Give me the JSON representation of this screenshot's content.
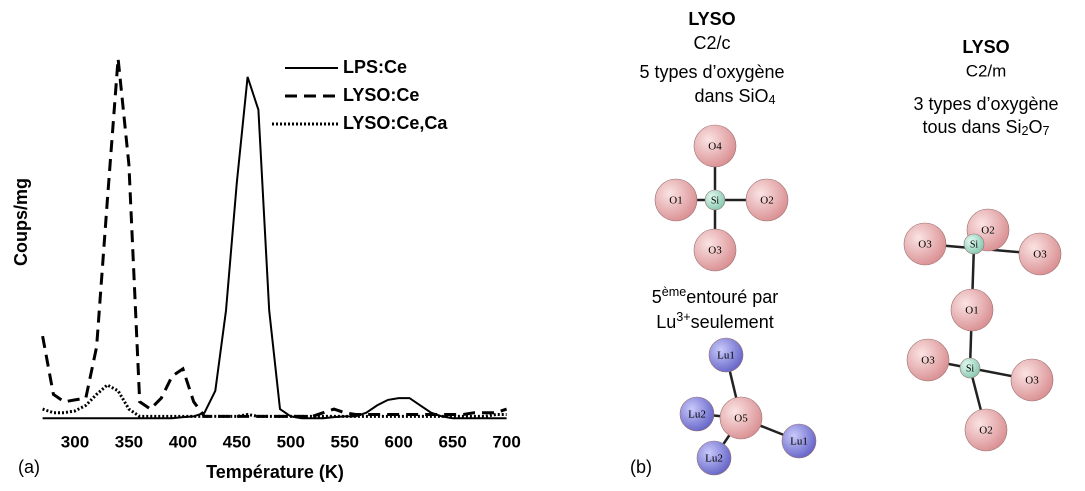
{
  "chart_data": {
    "type": "line",
    "xlabel": "Température (K)",
    "ylabel": "Coups/mg",
    "x": [
      270,
      280,
      290,
      300,
      310,
      320,
      330,
      340,
      350,
      360,
      370,
      380,
      390,
      400,
      410,
      420,
      430,
      440,
      450,
      460,
      470,
      480,
      490,
      500,
      510,
      520,
      530,
      540,
      550,
      560,
      570,
      580,
      590,
      600,
      610,
      620,
      630,
      640,
      650,
      660,
      670,
      680,
      690,
      700
    ],
    "series": [
      {
        "name": "LPS:Ce",
        "color": "#000000",
        "linestyle": "solid",
        "values": [
          0.5,
          0.5,
          0.5,
          0.5,
          0.5,
          0.5,
          0.5,
          0.5,
          0.5,
          0.5,
          0.5,
          0.5,
          0.5,
          0.8,
          1,
          2,
          8,
          30,
          65,
          94,
          85,
          30,
          3,
          1,
          0.5,
          0.5,
          0.5,
          0.8,
          1,
          1,
          2,
          4,
          5.5,
          6,
          6,
          4,
          2,
          1,
          0.5,
          0.5,
          0.5,
          0.5,
          0.5,
          0.5
        ]
      },
      {
        "name": "LYSO:Ce",
        "color": "#000000",
        "linestyle": "dashed",
        "values": [
          23,
          7,
          5,
          5.5,
          6,
          20,
          60,
          99,
          70,
          5,
          3,
          6,
          12,
          14,
          5,
          1,
          1,
          1,
          1,
          1,
          1,
          1,
          1,
          1,
          1,
          1,
          2,
          3,
          2,
          1.5,
          1.5,
          1.5,
          1.5,
          1.5,
          1.5,
          1.5,
          1.5,
          1.5,
          1.5,
          1.5,
          2,
          2,
          2,
          3
        ]
      },
      {
        "name": "LYSO:Ce,Ca",
        "color": "#000000",
        "linestyle": "dotted",
        "values": [
          3,
          2,
          2,
          2.5,
          4,
          7,
          9.6,
          8,
          3,
          1,
          1,
          1,
          1,
          1,
          1,
          1,
          1,
          1,
          1,
          1.5,
          1,
          1,
          1,
          1,
          1,
          1,
          1,
          1,
          1,
          1,
          1,
          1,
          1,
          1,
          1,
          1,
          1,
          1,
          1,
          1,
          1,
          1,
          1.5,
          1.5
        ]
      }
    ],
    "xlim": [
      270,
      705
    ],
    "ylim": [
      0,
      100
    ],
    "xticks": [
      300,
      350,
      400,
      450,
      500,
      550,
      600,
      650,
      700
    ],
    "legend": "upper right",
    "grid": false
  },
  "panel_a_label": "(a)",
  "panel_b": {
    "label": "(b)",
    "left": {
      "title": "LYSO",
      "space_group": "C2/c",
      "caption": [
        [
          {
            "text": "5 types d’oxygène"
          }
        ],
        [
          {
            "text": "dans SiO"
          },
          {
            "sub": "4"
          }
        ]
      ],
      "atoms": [
        "O4",
        "O1",
        "Si",
        "O2",
        "O3"
      ],
      "note": [
        [
          {
            "text": "5"
          },
          {
            "sup": "ème"
          },
          {
            "text": "entouré par"
          }
        ],
        [
          {
            "text": "Lu"
          },
          {
            "sup": "3+"
          },
          {
            "text": "seulement"
          }
        ]
      ],
      "atoms2": [
        "Lu1",
        "Lu2",
        "O5",
        "Lu2",
        "Lu1"
      ]
    },
    "right": {
      "title": "LYSO",
      "space_group": "C2/m",
      "caption": [
        [
          {
            "text": "3 types d’oxygène"
          }
        ],
        [
          {
            "text": "tous dans Si"
          },
          {
            "sub": "2"
          },
          {
            "text": "O"
          },
          {
            "sub": "7"
          }
        ]
      ],
      "atoms": [
        "O2",
        "O3",
        "Si",
        "O3",
        "O1",
        "O3",
        "Si",
        "O3",
        "O2"
      ]
    }
  }
}
